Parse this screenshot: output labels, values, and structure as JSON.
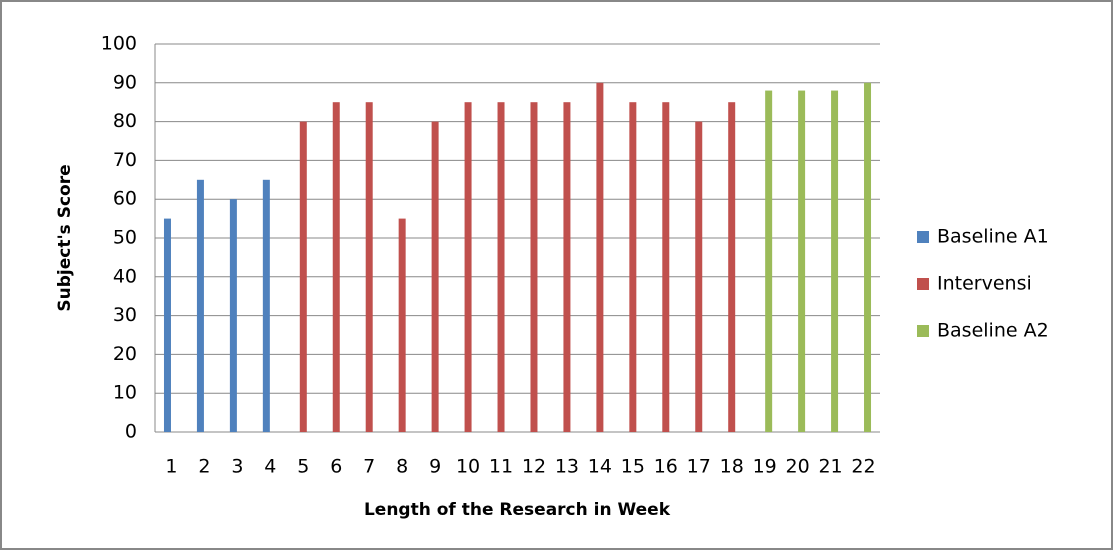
{
  "chart_data": {
    "type": "bar",
    "xlabel": "Length of the Research in Week",
    "ylabel": "Subject's Score",
    "categories": [
      "1",
      "2",
      "3",
      "4",
      "5",
      "6",
      "7",
      "8",
      "9",
      "10",
      "11",
      "12",
      "13",
      "14",
      "15",
      "16",
      "17",
      "18",
      "19",
      "20",
      "21",
      "22"
    ],
    "series": [
      {
        "name": "Baseline A1",
        "color": "#4f81bd",
        "values": [
          55,
          65,
          60,
          65,
          null,
          null,
          null,
          null,
          null,
          null,
          null,
          null,
          null,
          null,
          null,
          null,
          null,
          null,
          null,
          null,
          null,
          null
        ]
      },
      {
        "name": "Intervensi",
        "color": "#c0504d",
        "values": [
          null,
          null,
          null,
          null,
          80,
          85,
          85,
          55,
          80,
          85,
          85,
          85,
          85,
          90,
          85,
          85,
          80,
          85,
          null,
          null,
          null,
          null
        ]
      },
      {
        "name": "Baseline A2",
        "color": "#9bbb59",
        "values": [
          null,
          null,
          null,
          null,
          null,
          null,
          null,
          null,
          null,
          null,
          null,
          null,
          null,
          null,
          null,
          null,
          null,
          null,
          88,
          88,
          88,
          90
        ]
      }
    ],
    "ylim": [
      0,
      100
    ],
    "yticks": [
      0,
      10,
      20,
      30,
      40,
      50,
      60,
      70,
      80,
      90,
      100
    ],
    "grid": true,
    "legend": "right"
  }
}
